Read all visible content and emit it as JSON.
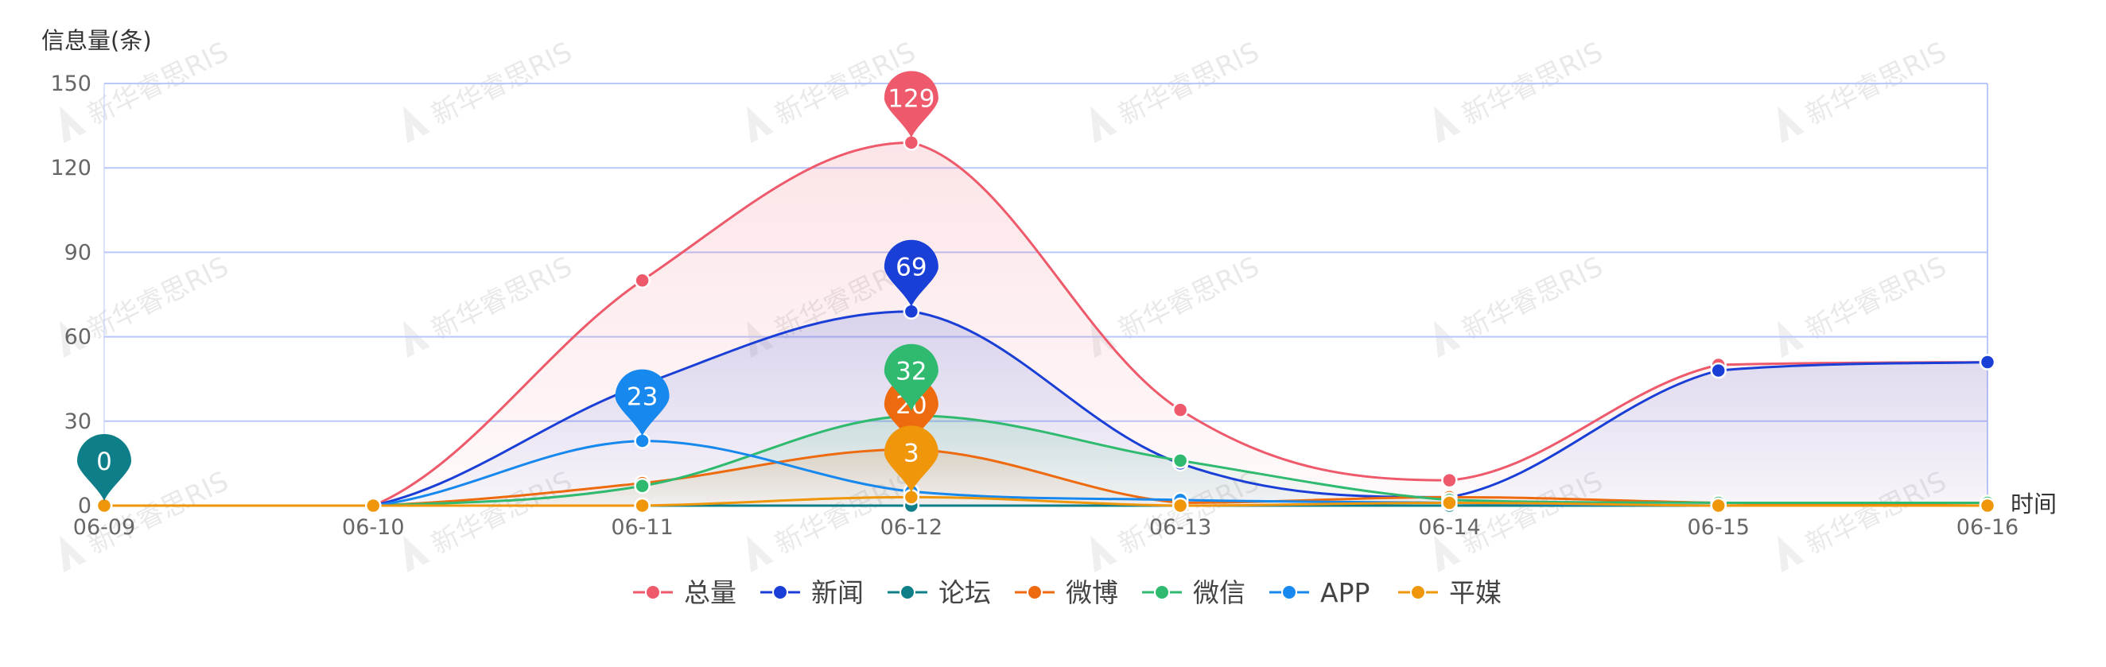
{
  "chart_data": {
    "type": "line",
    "ylabel": "信息量(条)",
    "xlabel": "时间",
    "categories": [
      "06-09",
      "06-10",
      "06-11",
      "06-12",
      "06-13",
      "06-14",
      "06-15",
      "06-16"
    ],
    "ylim": [
      0,
      150
    ],
    "yticks": [
      0,
      30,
      60,
      90,
      120,
      150
    ],
    "grid": true,
    "legend_position": "bottom",
    "series": [
      {
        "name": "总量",
        "color": "#ee5a6b",
        "area": true,
        "values": [
          0,
          0,
          80,
          129,
          34,
          9,
          50,
          51
        ],
        "max_label": "129",
        "max_index": 3
      },
      {
        "name": "新闻",
        "color": "#1a3fd6",
        "area": true,
        "values": [
          0,
          0,
          43,
          69,
          15,
          3,
          48,
          51
        ],
        "max_label": "69",
        "max_index": 3
      },
      {
        "name": "论坛",
        "color": "#0e7f89",
        "area": false,
        "values": [
          0,
          0,
          0,
          0,
          0,
          0,
          0,
          0
        ],
        "max_label": "0",
        "max_index": 0
      },
      {
        "name": "微博",
        "color": "#ee6a0f",
        "area": true,
        "values": [
          0,
          0,
          8,
          20,
          1,
          3,
          1,
          0
        ],
        "max_label": "20",
        "max_index": 3
      },
      {
        "name": "微信",
        "color": "#2fba6f",
        "area": true,
        "values": [
          0,
          0,
          7,
          32,
          16,
          2,
          1,
          1
        ],
        "max_label": "32",
        "max_index": 3
      },
      {
        "name": "APP",
        "color": "#1688ee",
        "area": false,
        "values": [
          0,
          0,
          23,
          5,
          2,
          1,
          0,
          0
        ],
        "max_label": "23",
        "max_index": 2
      },
      {
        "name": "平媒",
        "color": "#f0960a",
        "area": false,
        "values": [
          0,
          0,
          0,
          3,
          0,
          1,
          0,
          0
        ],
        "max_label": "3",
        "max_index": 3
      }
    ]
  },
  "watermark": "新华睿思RIS"
}
